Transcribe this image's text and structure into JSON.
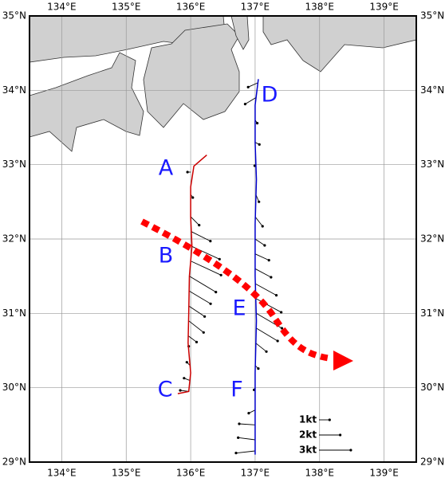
{
  "map": {
    "xlim": [
      133.5,
      139.5
    ],
    "ylim": [
      29,
      35
    ],
    "lon_ticks": [
      {
        "value": 134,
        "label": "134°E"
      },
      {
        "value": 135,
        "label": "135°E"
      },
      {
        "value": 136,
        "label": "136°E"
      },
      {
        "value": 137,
        "label": "137°E"
      },
      {
        "value": 138,
        "label": "138°E"
      },
      {
        "value": 139,
        "label": "139°E"
      }
    ],
    "lat_ticks": [
      {
        "value": 29,
        "label": "29°N"
      },
      {
        "value": 30,
        "label": "30°N"
      },
      {
        "value": 31,
        "label": "31°N"
      },
      {
        "value": 32,
        "label": "32°N"
      },
      {
        "value": 33,
        "label": "33°N"
      },
      {
        "value": 34,
        "label": "34°N"
      },
      {
        "value": 35,
        "label": "35°N"
      }
    ],
    "station_labels": [
      "A",
      "B",
      "C",
      "D",
      "E",
      "F"
    ],
    "tracks": [
      {
        "color": "#cc0000",
        "lon": [
          136.25,
          136.05,
          136.0,
          136.0,
          136.02,
          135.98,
          135.97,
          135.96,
          136.0,
          135.97,
          135.8
        ],
        "lat": [
          33.13,
          32.98,
          32.7,
          32.3,
          31.9,
          31.5,
          31.0,
          30.6,
          30.2,
          29.95,
          29.92
        ],
        "vectors": {
          "lat": [
            32.9,
            32.6,
            32.3,
            32.1,
            31.9,
            31.7,
            31.5,
            31.3,
            31.1,
            30.9,
            30.7,
            30.5,
            30.3,
            30.1,
            29.95
          ],
          "lon": [
            136.0,
            136.0,
            136.0,
            136.01,
            136.02,
            136.01,
            135.98,
            135.98,
            135.97,
            135.97,
            135.96,
            135.97,
            135.99,
            135.98,
            135.97
          ],
          "u": [
            -0.3,
            0.2,
            0.8,
            1.8,
            2.6,
            2.8,
            2.5,
            2.0,
            1.5,
            1.4,
            0.8,
            0.0,
            -0.3,
            -0.5,
            -0.8
          ],
          "v": [
            0,
            -0.3,
            -0.8,
            -0.9,
            -1.2,
            -1.3,
            -1.5,
            -1.2,
            -1.0,
            -1.1,
            -0.6,
            0.4,
            0.3,
            0.2,
            0.1
          ]
        }
      },
      {
        "color": "#0000cc",
        "lon": [
          137.05,
          137.0,
          137.0,
          137.02,
          137.0,
          137.0,
          137.02,
          137.0,
          137.0,
          137.0
        ],
        "lat": [
          34.15,
          33.8,
          33.3,
          32.8,
          32.2,
          31.5,
          30.9,
          30.2,
          29.6,
          29.1
        ],
        "vectors": {
          "lat": [
            34.1,
            33.9,
            33.6,
            33.3,
            33.0,
            32.6,
            32.3,
            32.0,
            31.8,
            31.6,
            31.4,
            31.2,
            31.0,
            30.8,
            30.6,
            30.3,
            30.0,
            29.7,
            29.5,
            29.3,
            29.15
          ],
          "lon": [
            137.04,
            137.01,
            137.0,
            137.0,
            137.01,
            137.01,
            137.0,
            137.0,
            137.0,
            137.0,
            137.0,
            137.01,
            137.02,
            137.02,
            137.01,
            137.0,
            137.0,
            137.0,
            137.0,
            137.0,
            137.0
          ],
          "u": [
            -0.9,
            -1.0,
            0.2,
            0.4,
            -0.1,
            0.3,
            0.7,
            0.9,
            1.3,
            1.5,
            2.0,
            2.4,
            2.4,
            2.0,
            1.0,
            0.3,
            -0.1,
            -0.6,
            -1.5,
            -1.6,
            -1.8
          ],
          "v": [
            -0.4,
            -0.6,
            -0.3,
            -0.2,
            -0.1,
            -0.7,
            -0.9,
            -0.6,
            -0.6,
            -0.8,
            -1.1,
            -1.3,
            -1.4,
            -1.2,
            -0.8,
            -0.3,
            -0.2,
            -0.3,
            0.1,
            0.2,
            -0.2
          ]
        }
      }
    ],
    "legend": [
      {
        "label": "1kt",
        "value": 1
      },
      {
        "label": "2kt",
        "value": 2
      },
      {
        "label": "3kt",
        "value": 3
      }
    ]
  }
}
